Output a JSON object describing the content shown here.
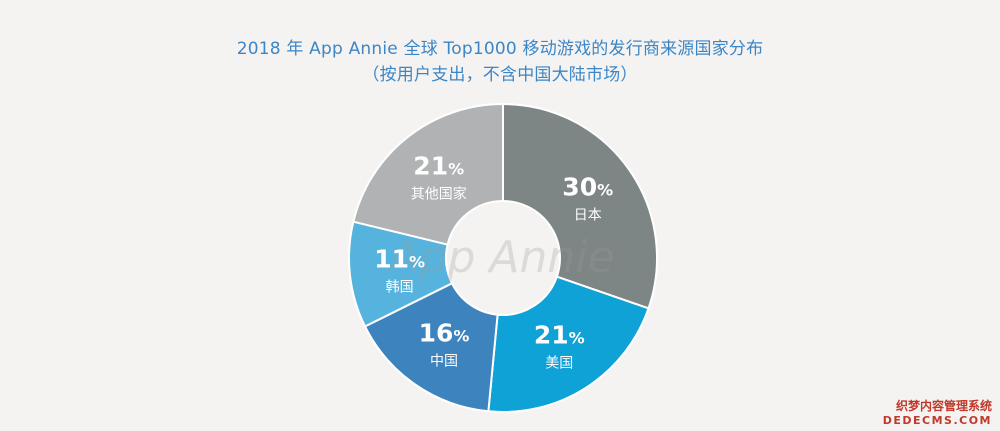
{
  "title": "2018 年 App Annie 全球 Top1000 移动游戏的发行商来源国家分布",
  "subtitle": "（按用户支出，不含中国大陆市场）",
  "watermark": "App Annie",
  "corner_mark": {
    "line1": "织梦内容管理系统",
    "line2": "DEDECMS.COM"
  },
  "chart_data": {
    "type": "pie",
    "variant": "donut",
    "title": "2018 年 App Annie 全球 Top1000 移动游戏的发行商来源国家分布",
    "subtitle": "（按用户支出，不含中国大陆市场）",
    "unit": "%",
    "slices": [
      {
        "label": "日本",
        "value": 30,
        "color": "#7d8585"
      },
      {
        "label": "美国",
        "value": 21,
        "color": "#0ea2d6"
      },
      {
        "label": "中国",
        "value": 16,
        "color": "#3d84bf"
      },
      {
        "label": "韩国",
        "value": 11,
        "color": "#56b3de"
      },
      {
        "label": "其他国家",
        "value": 21,
        "color": "#b0b2b3"
      }
    ]
  }
}
